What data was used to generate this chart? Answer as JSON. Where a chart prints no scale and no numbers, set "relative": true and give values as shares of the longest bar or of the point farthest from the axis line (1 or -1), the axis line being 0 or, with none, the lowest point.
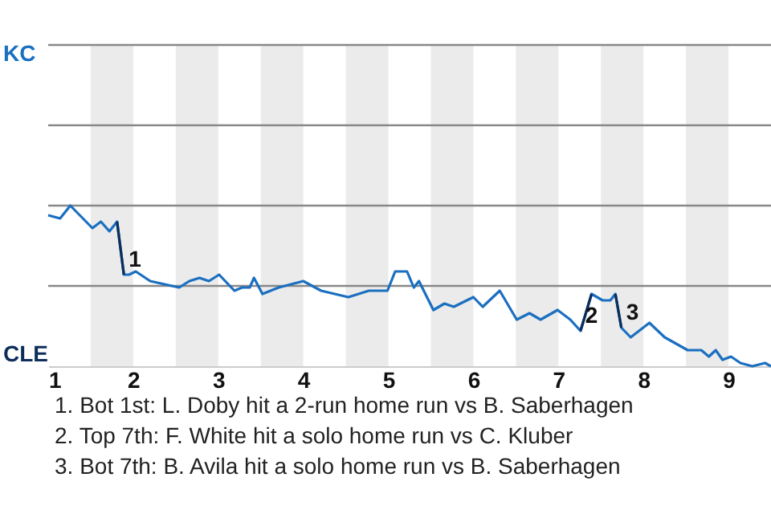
{
  "chart_data": {
    "type": "line",
    "relative": true,
    "x": [
      1.0,
      1.14,
      1.26,
      1.52,
      1.62,
      1.72,
      1.81,
      1.89,
      1.95,
      2.03,
      2.2,
      2.54,
      2.66,
      2.78,
      2.89,
      3.01,
      3.19,
      3.28,
      3.37,
      3.42,
      3.52,
      3.71,
      4.0,
      4.21,
      4.53,
      4.77,
      4.99,
      5.08,
      5.22,
      5.3,
      5.36,
      5.53,
      5.66,
      5.77,
      6.0,
      6.11,
      6.31,
      6.51,
      6.66,
      6.79,
      6.99,
      7.14,
      7.26,
      7.39,
      7.52,
      7.61,
      7.67,
      7.74,
      7.85,
      8.07,
      8.25,
      8.52,
      8.68,
      8.77,
      8.85,
      8.93,
      9.03,
      9.14,
      9.28,
      9.43,
      9.5
    ],
    "series": [
      {
        "color": "#1a6fc0",
        "values": [
          0.94,
          0.92,
          1,
          0.86,
          0.9,
          0.84,
          0.9,
          0.57,
          0.57,
          0.59,
          0.53,
          0.49,
          0.53,
          0.55,
          0.53,
          0.57,
          0.47,
          0.49,
          0.49,
          0.55,
          0.45,
          0.49,
          0.53,
          0.47,
          0.43,
          0.47,
          0.47,
          0.59,
          0.59,
          0.49,
          0.53,
          0.35,
          0.39,
          0.37,
          0.43,
          0.37,
          0.47,
          0.29,
          0.33,
          0.29,
          0.35,
          0.29,
          0.22,
          0.45,
          0.41,
          0.41,
          0.45,
          0.24,
          0.18,
          0.27,
          0.18,
          0.1,
          0.1,
          0.06,
          0.1,
          0.04,
          0.06,
          0.02,
          0,
          0.02,
          0
        ]
      },
      {
        "color": "#0d2d5a",
        "values": [
          null,
          null,
          null,
          null,
          null,
          null,
          0.9,
          0.57,
          null,
          null,
          null,
          null,
          null,
          null,
          null,
          null,
          null,
          null,
          null,
          null,
          null,
          null,
          null,
          null,
          null,
          null,
          null,
          null,
          null,
          null,
          null,
          null,
          null,
          null,
          null,
          null,
          null,
          null,
          null,
          null,
          null,
          null,
          0.22,
          0.45,
          null,
          null,
          0.45,
          0.24,
          null,
          null,
          null,
          null,
          null,
          null,
          null,
          null,
          null,
          null,
          null,
          null,
          null
        ]
      }
    ],
    "xlim": [
      1,
      9.5
    ],
    "xticks": [
      1,
      2,
      3,
      4,
      5,
      6,
      7,
      8,
      9
    ],
    "ref_lines": [
      {
        "axis": "y",
        "value": 0.5,
        "color": "#888888"
      },
      {
        "axis": "y",
        "value": 1,
        "color": "#888888"
      },
      {
        "axis": "y",
        "value": 1.5,
        "color": "#888888"
      },
      {
        "axis": "y",
        "value": 2,
        "color": "#888888"
      }
    ],
    "bands": [
      {
        "axis": "x",
        "from": 1.5,
        "to": 2,
        "color": "#ebebeb"
      },
      {
        "axis": "x",
        "from": 2.5,
        "to": 3,
        "color": "#ebebeb"
      },
      {
        "axis": "x",
        "from": 3.5,
        "to": 4,
        "color": "#ebebeb"
      },
      {
        "axis": "x",
        "from": 4.5,
        "to": 5,
        "color": "#ebebeb"
      },
      {
        "axis": "x",
        "from": 5.5,
        "to": 6,
        "color": "#ebebeb"
      },
      {
        "axis": "x",
        "from": 6.5,
        "to": 7,
        "color": "#ebebeb"
      },
      {
        "axis": "x",
        "from": 7.5,
        "to": 8,
        "color": "#ebebeb"
      },
      {
        "axis": "x",
        "from": 8.5,
        "to": 9,
        "color": "#ebebeb"
      }
    ],
    "annotations": [
      "KC",
      "CLE",
      {
        "text": "1",
        "x": 1.89,
        "y": 0.57
      },
      {
        "text": "2",
        "x": 7.26,
        "y": 0.22
      },
      {
        "text": "3",
        "x": 7.74,
        "y": 0.24
      },
      "1. Bot 1st: L. Doby hit a 2-run home run vs B. Saberhagen",
      "2. Top 7th: F. White hit a solo home run vs C. Kluber",
      "3. Bot 7th: B. Avila hit a solo home run vs B. Saberhagen"
    ]
  }
}
